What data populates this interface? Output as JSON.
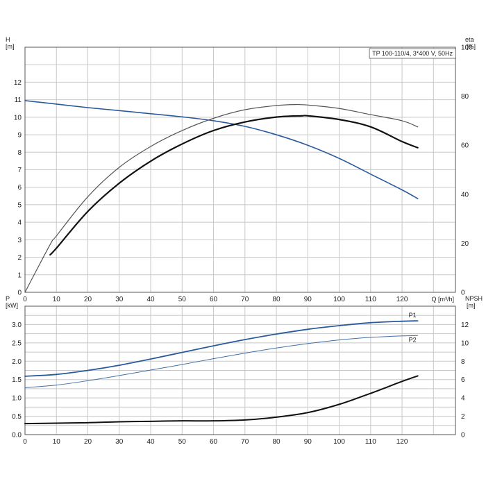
{
  "chart_data": [
    {
      "type": "line",
      "title": "TP 100-110/4, 3*400 V, 50Hz",
      "xlabel": "Q [m³/h]",
      "ylabel_left": [
        "H",
        "[m]"
      ],
      "ylabel_right": [
        "eta",
        "[%]"
      ],
      "x_ticks": [
        0,
        10,
        20,
        30,
        40,
        50,
        60,
        70,
        80,
        90,
        100,
        110,
        120
      ],
      "xlim": [
        0,
        137
      ],
      "y_left_ticks": [
        0,
        1,
        2,
        3,
        4,
        5,
        6,
        7,
        8,
        9,
        10,
        11,
        12
      ],
      "ylim_left": [
        0,
        14
      ],
      "y_right_ticks": [
        0,
        20,
        40,
        60,
        80,
        100
      ],
      "ylim_right": [
        0,
        100
      ],
      "grid": true,
      "series": [
        {
          "axis": "left",
          "color": "#2a5a9a",
          "width": 1.6,
          "x": [
            0,
            10,
            20,
            30,
            40,
            50,
            60,
            70,
            80,
            90,
            100,
            110,
            120,
            125
          ],
          "y": [
            10.95,
            10.75,
            10.55,
            10.38,
            10.2,
            10.02,
            9.8,
            9.48,
            9.0,
            8.4,
            7.65,
            6.75,
            5.85,
            5.35
          ]
        },
        {
          "axis": "right",
          "color": "#555555",
          "width": 1.2,
          "x": [
            0,
            8,
            10,
            20,
            30,
            40,
            50,
            60,
            70,
            80,
            86,
            90,
            100,
            110,
            120,
            125
          ],
          "y": [
            0,
            19.5,
            23,
            39,
            51,
            59.5,
            66,
            71,
            74.5,
            76.2,
            76.6,
            76.4,
            75,
            72.5,
            70,
            67.5
          ]
        },
        {
          "axis": "right",
          "color": "#111111",
          "width": 2.2,
          "x": [
            8,
            10,
            20,
            30,
            40,
            50,
            60,
            70,
            80,
            88,
            90,
            100,
            110,
            120,
            125
          ],
          "y": [
            15.3,
            18,
            33,
            44.5,
            53.5,
            60.5,
            66,
            69.5,
            71.5,
            72,
            72,
            70.5,
            67.5,
            61.5,
            59
          ]
        }
      ]
    },
    {
      "type": "line",
      "ylabel_left": [
        "P",
        "[kW]"
      ],
      "ylabel_right": [
        "NPSH",
        "[m]"
      ],
      "x_ticks": [
        0,
        10,
        20,
        30,
        40,
        50,
        60,
        70,
        80,
        90,
        100,
        110,
        120
      ],
      "xlim": [
        0,
        137
      ],
      "y_left_ticks": [
        0.0,
        0.5,
        1.0,
        1.5,
        2.0,
        2.5,
        3.0
      ],
      "y_left_tick_labels": [
        "0.0",
        "0.5",
        "1.0",
        "1.5",
        "2.0",
        "2.5",
        "3.0"
      ],
      "ylim_left": [
        0,
        3.5
      ],
      "y_right_ticks": [
        0,
        2,
        4,
        6,
        8,
        10,
        12
      ],
      "ylim_right": [
        0,
        14
      ],
      "grid": true,
      "series": [
        {
          "name": "P1",
          "axis": "left",
          "color": "#2a5a9a",
          "width": 1.8,
          "x": [
            0,
            10,
            20,
            30,
            40,
            50,
            60,
            70,
            80,
            90,
            100,
            110,
            120,
            125
          ],
          "y": [
            1.59,
            1.64,
            1.75,
            1.89,
            2.06,
            2.24,
            2.42,
            2.59,
            2.74,
            2.87,
            2.97,
            3.05,
            3.09,
            3.1
          ]
        },
        {
          "name": "P2",
          "axis": "left",
          "color": "#3f6fa8",
          "width": 1.0,
          "x": [
            0,
            10,
            20,
            30,
            40,
            50,
            60,
            70,
            80,
            90,
            100,
            110,
            120,
            125
          ],
          "y": [
            1.28,
            1.35,
            1.47,
            1.61,
            1.76,
            1.91,
            2.07,
            2.22,
            2.36,
            2.48,
            2.58,
            2.65,
            2.69,
            2.7
          ]
        },
        {
          "axis": "right",
          "color": "#111111",
          "width": 2.0,
          "x": [
            0,
            10,
            20,
            30,
            40,
            50,
            60,
            70,
            80,
            90,
            100,
            110,
            120,
            125
          ],
          "y": [
            1.2,
            1.25,
            1.3,
            1.4,
            1.45,
            1.5,
            1.5,
            1.6,
            1.9,
            2.4,
            3.3,
            4.5,
            5.8,
            6.4
          ]
        }
      ]
    }
  ]
}
